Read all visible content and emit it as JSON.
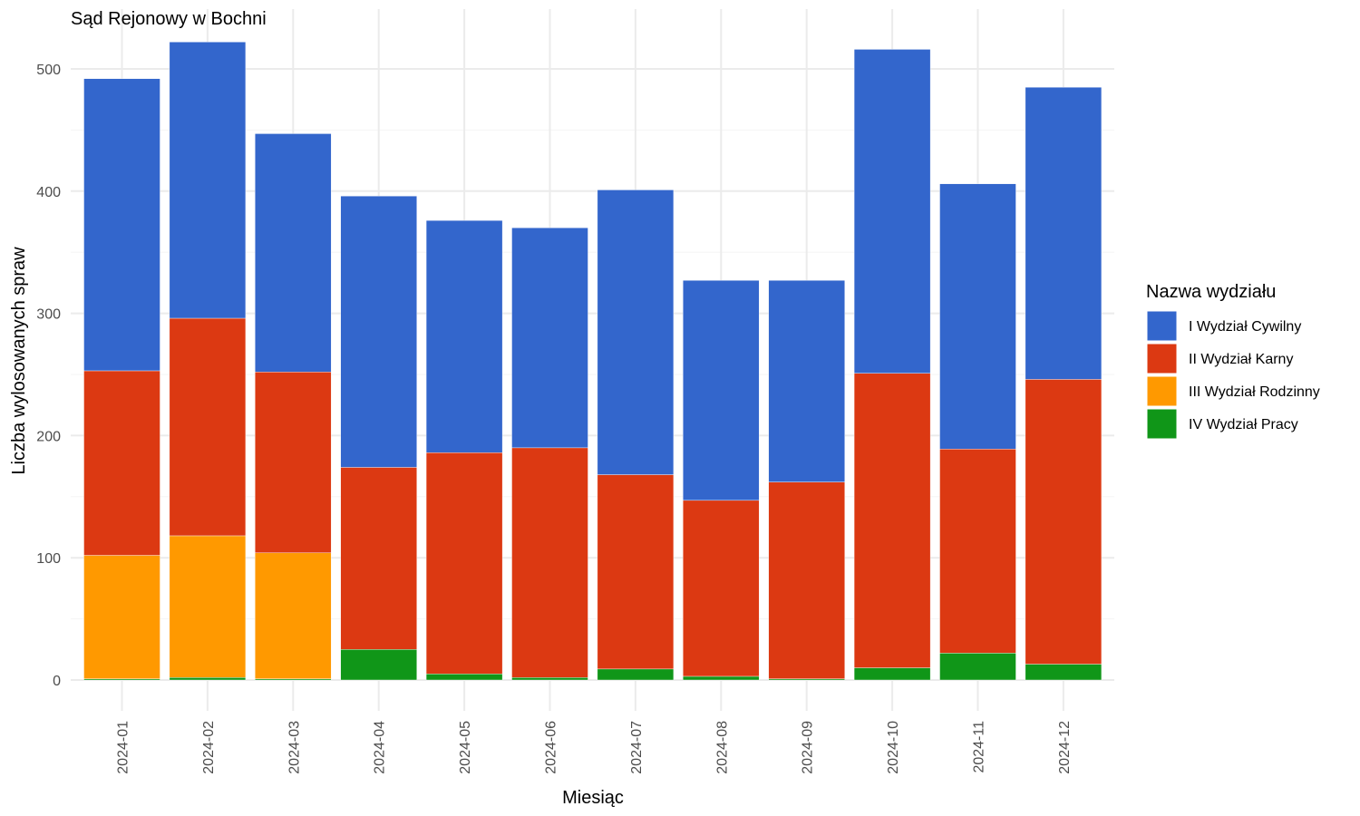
{
  "chart_data": {
    "type": "bar",
    "stacked": true,
    "title": "Sąd Rejonowy w Bochni",
    "xlabel": "Miesiąc",
    "ylabel": "Liczba wylosowanych spraw",
    "ylim": [
      0,
      540
    ],
    "yticks": [
      0,
      100,
      200,
      300,
      400,
      500
    ],
    "grid": true,
    "legend_position": "right",
    "legend_title": "Nazwa wydziału",
    "categories": [
      "2024-01",
      "2024-02",
      "2024-03",
      "2024-04",
      "2024-05",
      "2024-06",
      "2024-07",
      "2024-08",
      "2024-09",
      "2024-10",
      "2024-11",
      "2024-12"
    ],
    "series": [
      {
        "name": "IV Wydział Pracy",
        "color": "#109618",
        "values": [
          1,
          2,
          1,
          25,
          5,
          2,
          9,
          3,
          1,
          10,
          22,
          13
        ]
      },
      {
        "name": "III Wydział Rodzinny",
        "color": "#FF9900",
        "values": [
          101,
          116,
          103,
          0,
          0,
          0,
          0,
          0,
          0,
          0,
          0,
          0
        ]
      },
      {
        "name": "II Wydział Karny",
        "color": "#DC3912",
        "values": [
          151,
          178,
          148,
          149,
          181,
          188,
          159,
          144,
          161,
          241,
          167,
          233
        ]
      },
      {
        "name": "I Wydział Cywilny",
        "color": "#3366CC",
        "values": [
          239,
          226,
          195,
          222,
          190,
          180,
          233,
          180,
          165,
          265,
          217,
          239
        ]
      }
    ],
    "legend_order": [
      "I Wydział Cywilny",
      "II Wydział Karny",
      "III Wydział Rodzinny",
      "IV Wydział Pracy"
    ]
  }
}
